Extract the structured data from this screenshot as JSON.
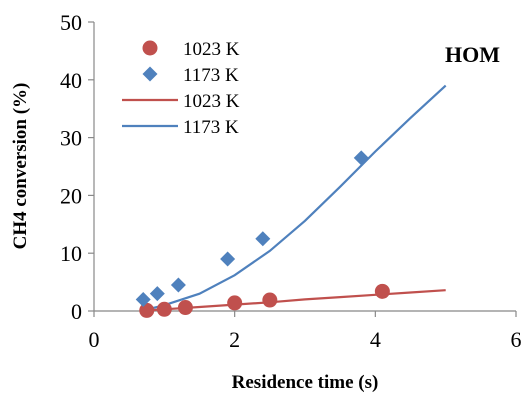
{
  "chart_data": {
    "type": "scatter",
    "xlabel": "Residence time (s)",
    "ylabel": "CH4 conversion (%)",
    "xlim": [
      0,
      6
    ],
    "ylim": [
      0,
      50
    ],
    "xticks": [
      "0",
      "2",
      "4",
      "6"
    ],
    "yticks": [
      "0",
      "10",
      "20",
      "30",
      "40",
      "50"
    ],
    "grid": false,
    "annotation": "HOM",
    "legend_position": "top-left",
    "series": [
      {
        "name": "1023 K",
        "kind": "markers",
        "marker": "circle",
        "color": "#C0504D",
        "x": [
          0.75,
          1.0,
          1.3,
          2.0,
          2.5,
          4.1
        ],
        "y": [
          0.1,
          0.3,
          0.6,
          1.4,
          1.9,
          3.4
        ]
      },
      {
        "name": "1173 K",
        "kind": "markers",
        "marker": "diamond",
        "color": "#4F81BD",
        "x": [
          0.7,
          0.9,
          1.2,
          1.9,
          2.4,
          3.8
        ],
        "y": [
          2.0,
          3.0,
          4.5,
          9.0,
          12.5,
          26.5
        ]
      },
      {
        "name": "1023 K",
        "kind": "line",
        "color": "#C0504D",
        "x": [
          0.75,
          1.0,
          1.5,
          2.0,
          2.5,
          3.0,
          3.5,
          4.0,
          4.5,
          5.0
        ],
        "y": [
          0.1,
          0.3,
          0.7,
          1.1,
          1.5,
          2.0,
          2.4,
          2.8,
          3.2,
          3.6
        ]
      },
      {
        "name": "1173 K",
        "kind": "line",
        "color": "#4F81BD",
        "x": [
          0.8,
          1.0,
          1.5,
          2.0,
          2.5,
          3.0,
          3.5,
          4.0,
          4.5,
          5.0
        ],
        "y": [
          0.4,
          1.0,
          3.0,
          6.2,
          10.4,
          15.6,
          21.5,
          27.6,
          33.4,
          39.0
        ]
      }
    ]
  }
}
